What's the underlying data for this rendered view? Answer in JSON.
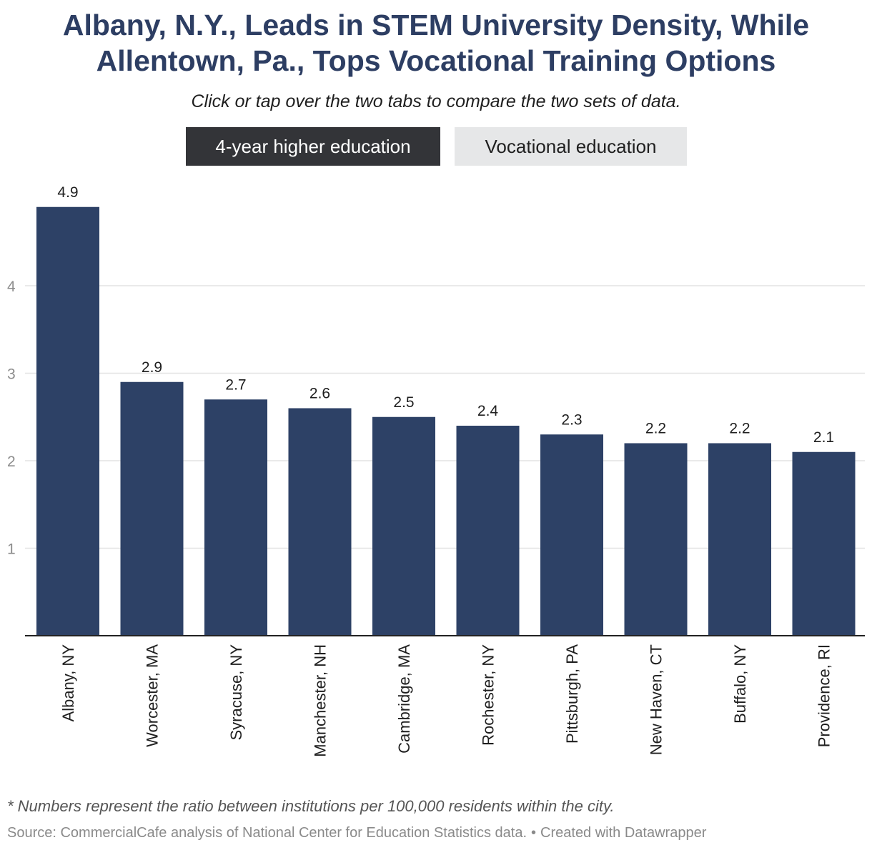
{
  "header": {
    "title_line1": "Albany, N.Y., Leads in STEM University Density, While",
    "title_line2": "Allentown, Pa., Tops Vocational Training Options",
    "subtitle": "Click or tap over the two tabs to compare the two sets of data."
  },
  "tabs": [
    {
      "label": "4-year higher education",
      "active": true
    },
    {
      "label": "Vocational education",
      "active": false
    }
  ],
  "chart_data": {
    "type": "bar",
    "title": "Albany, N.Y., Leads in STEM University Density, While Allentown, Pa., Tops Vocational Training Options",
    "categories": [
      "Albany, NY",
      "Worcester, MA",
      "Syracuse, NY",
      "Manchester, NH",
      "Cambridge, MA",
      "Rochester, NY",
      "Pittsburgh, PA",
      "New Haven, CT",
      "Buffalo, NY",
      "Providence, RI"
    ],
    "values": [
      4.9,
      2.9,
      2.7,
      2.6,
      2.5,
      2.4,
      2.3,
      2.2,
      2.2,
      2.1
    ],
    "data_labels": [
      "4.9",
      "2.9",
      "2.7",
      "2.6",
      "2.5",
      "2.4",
      "2.3",
      "2.2",
      "2.2",
      "2.1"
    ],
    "yticks": [
      1,
      2,
      3,
      4
    ],
    "ylim": [
      0,
      4.9
    ],
    "grid": true,
    "bar_color": "#2d4166",
    "gridline_color": "#e3e3e3",
    "axis_color": "#222222",
    "tick_label_color": "#8c8c8c",
    "xlabel": "",
    "ylabel": ""
  },
  "footer": {
    "note": "* Numbers represent the ratio between institutions per 100,000 residents within the city.",
    "source": "Source: CommercialCafe analysis of National Center for Education Statistics data.",
    "separator": "•",
    "credit": "Created with Datawrapper"
  }
}
